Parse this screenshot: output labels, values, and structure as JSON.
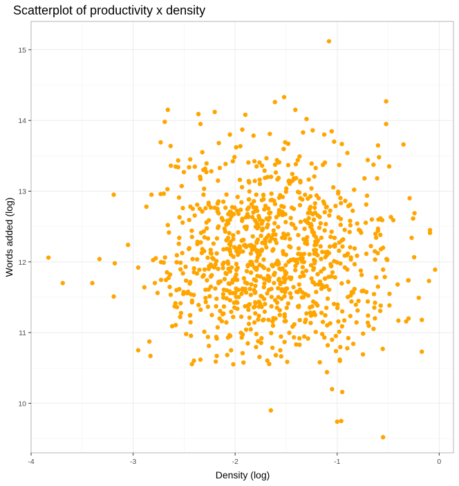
{
  "chart_data": {
    "type": "scatter",
    "title": "Scatterplot of productivity x density",
    "xlabel": "Density (log)",
    "ylabel": "Words added (log)",
    "xlim": [
      -4.0,
      0.14
    ],
    "ylim": [
      9.3,
      15.4
    ],
    "x_ticks": [
      -4,
      -3,
      -2,
      -1,
      0
    ],
    "y_ticks": [
      10,
      11,
      12,
      13,
      14,
      15
    ],
    "grid": true,
    "point_color": "#FFA500",
    "point_count": 1000,
    "point_seed": 20240517,
    "point_center": [
      -1.65,
      12.0
    ],
    "point_spread": [
      0.55,
      0.75
    ],
    "points": [
      [
        -3.83,
        12.06
      ],
      [
        -3.69,
        11.7
      ],
      [
        -3.4,
        11.7
      ],
      [
        -3.33,
        12.04
      ],
      [
        -3.19,
        12.95
      ],
      [
        -3.18,
        11.98
      ],
      [
        -3.19,
        11.51
      ],
      [
        -3.05,
        12.24
      ],
      [
        -2.95,
        10.75
      ],
      [
        -2.95,
        11.92
      ],
      [
        -2.89,
        11.64
      ],
      [
        -2.87,
        12.78
      ],
      [
        -2.83,
        10.67
      ],
      [
        -2.82,
        12.95
      ],
      [
        -2.73,
        13.69
      ],
      [
        -2.73,
        12.96
      ],
      [
        -2.69,
        13.98
      ],
      [
        -2.66,
        14.15
      ],
      [
        -2.7,
        11.99
      ],
      [
        -2.63,
        13.36
      ],
      [
        -2.66,
        12.52
      ],
      [
        -2.57,
        11.36
      ],
      [
        -2.55,
        12.91
      ],
      [
        -2.48,
        10.98
      ],
      [
        -2.44,
        13.45
      ],
      [
        -2.36,
        14.09
      ],
      [
        -2.34,
        13.95
      ],
      [
        -2.31,
        12.95
      ],
      [
        -2.2,
        14.12
      ],
      [
        -2.19,
        10.59
      ],
      [
        -2.16,
        13.68
      ],
      [
        -2.07,
        10.93
      ],
      [
        -2.04,
        10.75
      ],
      [
        -1.99,
        13.62
      ],
      [
        -1.93,
        13.87
      ],
      [
        -1.9,
        14.08
      ],
      [
        -1.85,
        12.0
      ],
      [
        -1.79,
        13.35
      ],
      [
        -1.66,
        13.81
      ],
      [
        -1.61,
        14.26
      ],
      [
        -1.52,
        14.33
      ],
      [
        -1.48,
        13.67
      ],
      [
        -1.41,
        14.15
      ],
      [
        -1.3,
        14.02
      ],
      [
        -1.24,
        13.86
      ],
      [
        -1.08,
        15.12
      ],
      [
        -1.03,
        13.7
      ],
      [
        -0.98,
        13.37
      ],
      [
        -0.9,
        13.54
      ],
      [
        -0.7,
        13.44
      ],
      [
        -0.59,
        13.48
      ],
      [
        -0.52,
        14.27
      ],
      [
        -0.52,
        13.95
      ],
      [
        -0.49,
        13.35
      ],
      [
        -0.35,
        13.66
      ],
      [
        -0.29,
        12.9
      ],
      [
        -0.27,
        12.34
      ],
      [
        -0.09,
        12.45
      ],
      [
        -0.09,
        12.41
      ],
      [
        -0.04,
        11.89
      ],
      [
        -0.1,
        11.73
      ],
      [
        -0.3,
        11.74
      ],
      [
        -0.3,
        11.2
      ],
      [
        -0.17,
        11.18
      ],
      [
        -0.17,
        10.73
      ],
      [
        -0.4,
        11.17
      ],
      [
        -0.45,
        12.59
      ],
      [
        -0.6,
        12.44
      ],
      [
        -0.66,
        12.6
      ],
      [
        -0.55,
        12.2
      ],
      [
        -0.55,
        11.89
      ],
      [
        -0.6,
        11.65
      ],
      [
        -0.7,
        11.44
      ],
      [
        -0.7,
        11.14
      ],
      [
        -0.86,
        11.44
      ],
      [
        -0.95,
        11.3
      ],
      [
        -1.1,
        10.44
      ],
      [
        -1.05,
        10.2
      ],
      [
        -0.95,
        10.16
      ],
      [
        -0.96,
        9.75
      ],
      [
        -1.0,
        9.74
      ],
      [
        -0.55,
        9.52
      ],
      [
        -1.65,
        9.9
      ],
      [
        -1.6,
        10.68
      ],
      [
        -1.17,
        10.58
      ],
      [
        -1.05,
        10.9
      ]
    ]
  }
}
